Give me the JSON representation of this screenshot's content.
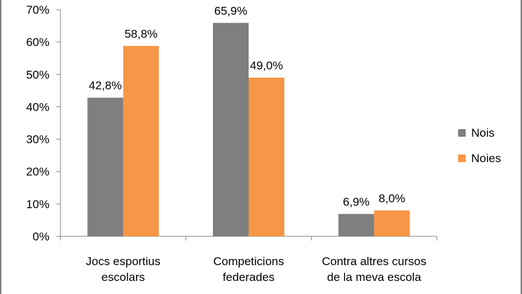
{
  "chart_data": {
    "type": "bar",
    "title": "",
    "xlabel": "",
    "ylabel": "",
    "ylim": [
      0,
      70
    ],
    "yticks": [
      0,
      10,
      20,
      30,
      40,
      50,
      60,
      70
    ],
    "ytick_labels": [
      "0%",
      "10%",
      "20%",
      "30%",
      "40%",
      "50%",
      "60%",
      "70%"
    ],
    "categories": [
      [
        "Jocs esportius",
        "escolars"
      ],
      [
        "Competicions",
        "federades"
      ],
      [
        "Contra altres cursos",
        "de la meva escola"
      ]
    ],
    "series": [
      {
        "name": "Nois",
        "color": "#7f7f7f",
        "values": [
          42.8,
          65.9,
          6.9
        ],
        "labels": [
          "42,8%",
          "65,9%",
          "6,9%"
        ]
      },
      {
        "name": "Noies",
        "color": "#f79646",
        "values": [
          58.8,
          49.0,
          8.0
        ],
        "labels": [
          "58,8%",
          "49,0%",
          "8,0%"
        ]
      }
    ],
    "grid": false,
    "legend": "right"
  }
}
